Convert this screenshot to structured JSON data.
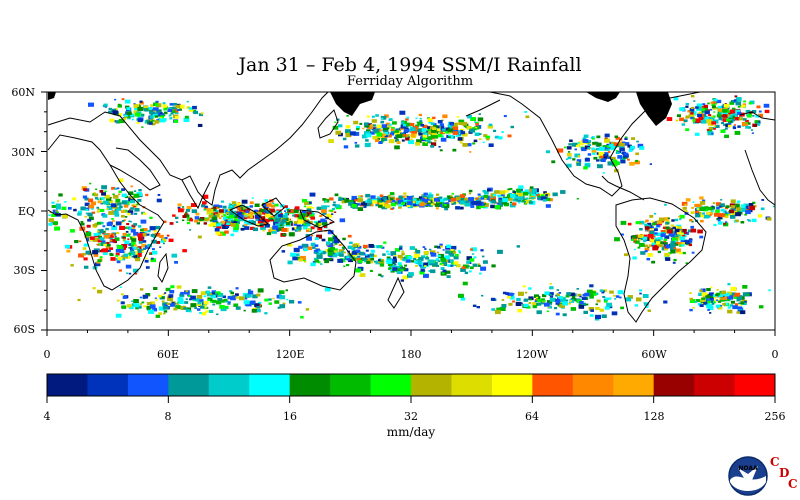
{
  "title": "Jan 31 – Feb 4, 1994 SSM/I Rainfall",
  "subtitle": "Ferriday Algorithm",
  "map": {
    "lat_labels": [
      "60N",
      "30N",
      "EQ",
      "30S",
      "60S"
    ],
    "lon_labels": [
      "0",
      "60E",
      "120E",
      "180",
      "120W",
      "60W",
      "0"
    ],
    "lat_range": [
      -60,
      60
    ],
    "lon_range": [
      0,
      360
    ],
    "land_color": "#ffffff",
    "ice_color": "#000000"
  },
  "colorbar": {
    "unit": "mm/day",
    "tick_labels": [
      "4",
      "8",
      "16",
      "32",
      "64",
      "128",
      "256"
    ],
    "scale": "log2",
    "colors": [
      "#001a80",
      "#0033bb",
      "#1155ff",
      "#009999",
      "#00cccc",
      "#00ffff",
      "#008c00",
      "#00bb00",
      "#00ff00",
      "#b3b300",
      "#dddd00",
      "#ffff00",
      "#ff5500",
      "#ff8800",
      "#ffaa00",
      "#990000",
      "#cc0000",
      "#ff0000"
    ]
  },
  "logo": {
    "noaa_text": "NOAA",
    "cdc_letters": [
      "C",
      "D",
      "C"
    ]
  }
}
